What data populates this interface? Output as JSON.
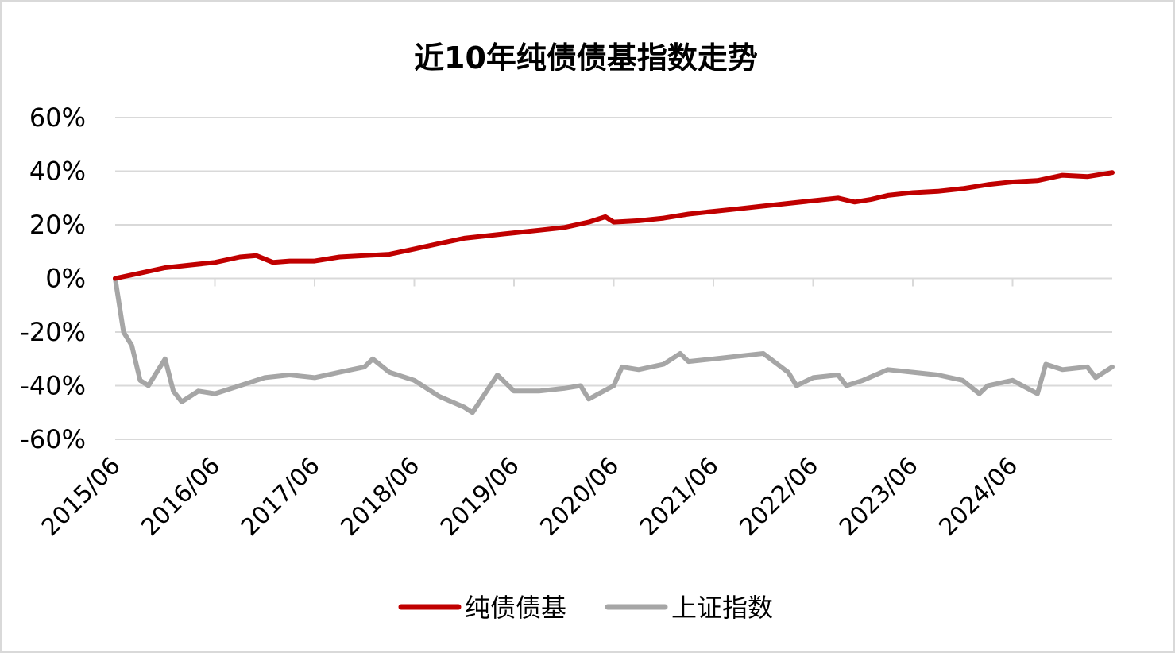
{
  "chart_data": {
    "type": "line",
    "title": "近10年纯债债基指数走势",
    "xlabel": "",
    "ylabel": "",
    "x_ticks": [
      "2015/06",
      "2016/06",
      "2017/06",
      "2018/06",
      "2019/06",
      "2020/06",
      "2021/06",
      "2022/06",
      "2023/06",
      "2024/06"
    ],
    "y_ticks": [
      "60%",
      "40%",
      "20%",
      "0%",
      "-20%",
      "-40%",
      "-60%"
    ],
    "ylim": [
      -60,
      60
    ],
    "xlim": [
      "2015/06",
      "2025/06"
    ],
    "grid": true,
    "legend_position": "bottom",
    "series": [
      {
        "name": "纯债债基",
        "color": "#c00000",
        "x": [
          "2015/06",
          "2015/09",
          "2015/12",
          "2016/03",
          "2016/06",
          "2016/09",
          "2016/11",
          "2017/01",
          "2017/03",
          "2017/06",
          "2017/09",
          "2017/12",
          "2018/03",
          "2018/06",
          "2018/09",
          "2018/12",
          "2019/03",
          "2019/06",
          "2019/09",
          "2019/12",
          "2020/03",
          "2020/05",
          "2020/06",
          "2020/09",
          "2020/12",
          "2021/03",
          "2021/06",
          "2021/09",
          "2021/12",
          "2022/03",
          "2022/06",
          "2022/09",
          "2022/11",
          "2023/01",
          "2023/03",
          "2023/06",
          "2023/09",
          "2023/12",
          "2024/03",
          "2024/06",
          "2024/09",
          "2024/12",
          "2025/03",
          "2025/06"
        ],
        "values": [
          0,
          2,
          4,
          5,
          6,
          8,
          8.5,
          6,
          6.5,
          6.5,
          8,
          8.5,
          9,
          11,
          13,
          15,
          16,
          17,
          18,
          19,
          21,
          23,
          21,
          21.5,
          22.5,
          24,
          25,
          26,
          27,
          28,
          29,
          30,
          28.5,
          29.5,
          31,
          32,
          32.5,
          33.5,
          35,
          36,
          36.5,
          38.5,
          38,
          39.5
        ]
      },
      {
        "name": "上证指数",
        "color": "#a6a6a6",
        "x": [
          "2015/06",
          "2015/07",
          "2015/08",
          "2015/09",
          "2015/10",
          "2015/12",
          "2016/01",
          "2016/02",
          "2016/04",
          "2016/06",
          "2016/09",
          "2016/12",
          "2017/03",
          "2017/06",
          "2017/09",
          "2017/12",
          "2018/01",
          "2018/03",
          "2018/06",
          "2018/09",
          "2018/12",
          "2019/01",
          "2019/04",
          "2019/06",
          "2019/09",
          "2019/12",
          "2020/02",
          "2020/03",
          "2020/06",
          "2020/07",
          "2020/09",
          "2020/12",
          "2021/02",
          "2021/03",
          "2021/06",
          "2021/09",
          "2021/12",
          "2022/03",
          "2022/04",
          "2022/06",
          "2022/09",
          "2022/10",
          "2022/12",
          "2023/03",
          "2023/06",
          "2023/09",
          "2023/12",
          "2024/02",
          "2024/03",
          "2024/06",
          "2024/09",
          "2024/10",
          "2024/12",
          "2025/03",
          "2025/04",
          "2025/06"
        ],
        "values": [
          0,
          -20,
          -25,
          -38,
          -40,
          -30,
          -42,
          -46,
          -42,
          -43,
          -40,
          -37,
          -36,
          -37,
          -35,
          -33,
          -30,
          -35,
          -38,
          -44,
          -48,
          -50,
          -36,
          -42,
          -42,
          -41,
          -40,
          -45,
          -40,
          -33,
          -34,
          -32,
          -28,
          -31,
          -30,
          -29,
          -28,
          -35,
          -40,
          -37,
          -36,
          -40,
          -38,
          -34,
          -35,
          -36,
          -38,
          -43,
          -40,
          -38,
          -43,
          -32,
          -34,
          -33,
          -37,
          -33
        ]
      }
    ]
  }
}
